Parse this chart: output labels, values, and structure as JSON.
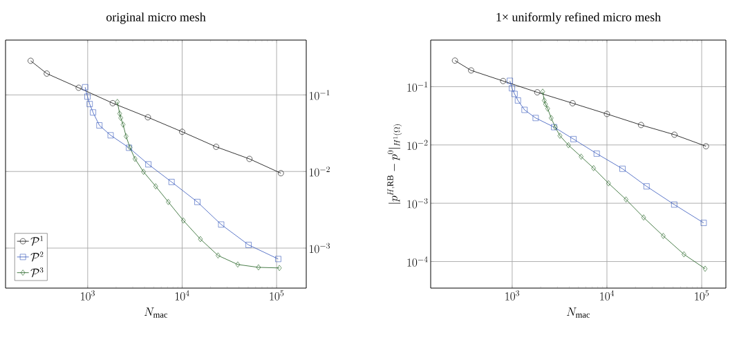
{
  "chart_data": [
    {
      "type": "line",
      "title": "original micro mesh",
      "xlabel": "N_{\\mathrm{mac}}",
      "log": "xy",
      "grid": true,
      "legend": "bottom left",
      "xlim": [
        135,
        206000
      ],
      "ylim": [
        0.0003,
        0.52
      ],
      "xticks": [
        {
          "value": 1000,
          "label": "10^{3}"
        },
        {
          "value": 10000,
          "label": "10^{4}"
        },
        {
          "value": 100000,
          "label": "10^{5}"
        }
      ],
      "yticks": [
        {
          "value": 0.1,
          "label": "10^{-1}"
        },
        {
          "value": 0.01,
          "label": "10^{-2}"
        },
        {
          "value": 0.001,
          "label": "10^{-3}"
        }
      ],
      "series": [
        {
          "name": "\\mathcal{P}^1",
          "color": "#000000",
          "marker": "circle",
          "x": [
            249,
            369,
            803,
            1841,
            4340,
            10000,
            22900,
            51600,
            111000
          ],
          "values": [
            0.279,
            0.19,
            0.124,
            0.078,
            0.051,
            0.033,
            0.021,
            0.0146,
            0.0095
          ]
        },
        {
          "name": "\\mathcal{P}^2",
          "color": "#3355bb",
          "marker": "square",
          "x": [
            940,
            995,
            1050,
            1140,
            1330,
            1750,
            2740,
            4390,
            7730,
            14500,
            25900,
            50500,
            104000
          ],
          "values": [
            0.126,
            0.095,
            0.076,
            0.059,
            0.04,
            0.0297,
            0.0204,
            0.0124,
            0.0073,
            0.004,
            0.00203,
            0.0011,
            0.00072
          ]
        },
        {
          "name": "\\mathcal{P}^3",
          "color": "#1a5c1a",
          "marker": "diamond",
          "x": [
            2060,
            2180,
            2240,
            2370,
            2550,
            2800,
            3170,
            3900,
            5250,
            7140,
            10300,
            15600,
            24000,
            38800,
            64300,
            107000
          ],
          "values": [
            0.081,
            0.057,
            0.05,
            0.041,
            0.0288,
            0.0206,
            0.0146,
            0.0099,
            0.0064,
            0.004,
            0.00229,
            0.00131,
            0.0008,
            0.00061,
            0.00056,
            0.00055
          ]
        }
      ]
    },
    {
      "type": "line",
      "title": "1× uniformly refined micro mesh",
      "xlabel": "N_{\\mathrm{mac}}",
      "ylabel": "|p^{H,\\mathrm{RB}}-p^{0}|_{H^{1}(\\Omega)}",
      "log": "xy",
      "grid": true,
      "xlim": [
        138,
        180000
      ],
      "ylim": [
        3.5e-05,
        0.63
      ],
      "xticks": [
        {
          "value": 1000,
          "label": "10^{3}"
        },
        {
          "value": 10000,
          "label": "10^{4}"
        },
        {
          "value": 100000,
          "label": "10^{5}"
        }
      ],
      "yticks": [
        {
          "value": 0.1,
          "label": "10^{-1}"
        },
        {
          "value": 0.01,
          "label": "10^{-2}"
        },
        {
          "value": 0.001,
          "label": "10^{-3}"
        },
        {
          "value": 0.0001,
          "label": "10^{-4}"
        }
      ],
      "series": [
        {
          "color": "#000000",
          "marker": "circle",
          "x": [
            249,
            369,
            803,
            1841,
            4340,
            10000,
            22900,
            51600,
            111000
          ],
          "values": [
            0.28,
            0.19,
            0.125,
            0.08,
            0.052,
            0.034,
            0.022,
            0.015,
            0.0095
          ]
        },
        {
          "color": "#3355bb",
          "marker": "square",
          "x": [
            946,
            995,
            1060,
            1150,
            1350,
            1770,
            2770,
            4440,
            7800,
            14600,
            26200,
            51300,
            105000
          ],
          "values": [
            0.126,
            0.094,
            0.075,
            0.058,
            0.04,
            0.029,
            0.0202,
            0.0126,
            0.0071,
            0.0039,
            0.00195,
            0.00095,
            0.00046
          ]
        },
        {
          "color": "#1a5c1a",
          "marker": "diamond",
          "x": [
            2100,
            2180,
            2250,
            2370,
            2580,
            2850,
            3190,
            3930,
            5340,
            7230,
            10400,
            15900,
            24400,
            39300,
            65000,
            108700
          ],
          "values": [
            0.082,
            0.058,
            0.05,
            0.042,
            0.029,
            0.0202,
            0.0144,
            0.0099,
            0.0063,
            0.004,
            0.0022,
            0.00116,
            0.00057,
            0.000275,
            0.000133,
            7.53e-05
          ]
        }
      ]
    }
  ]
}
